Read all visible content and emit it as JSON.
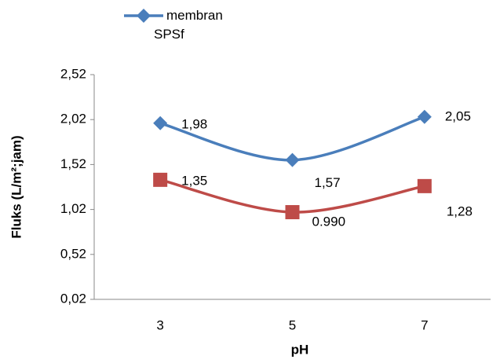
{
  "chart_data": {
    "type": "line",
    "categories": [
      "3",
      "5",
      "7"
    ],
    "series": [
      {
        "name": "membran SPSf",
        "color": "#4a7ebb",
        "marker": "diamond",
        "values": [
          1.98,
          1.57,
          2.05
        ],
        "value_labels": [
          "1,98",
          "1,57",
          "2,05"
        ]
      },
      {
        "color": "#be4b48",
        "marker": "square",
        "values": [
          1.35,
          0.99,
          1.28
        ],
        "value_labels": [
          "1,35",
          "0.990",
          "1,28"
        ]
      }
    ],
    "ylim": [
      0.02,
      2.52
    ],
    "yticks": [
      {
        "value": 0.02,
        "label": "0,02"
      },
      {
        "value": 0.52,
        "label": "0,52"
      },
      {
        "value": 1.02,
        "label": "1,02"
      },
      {
        "value": 1.52,
        "label": "1,52"
      },
      {
        "value": 2.02,
        "label": "2,02"
      },
      {
        "value": 2.52,
        "label": "2,52"
      }
    ],
    "y_label": "Fluks (L/m²;jam)",
    "x_label": "pH",
    "smooth": true
  }
}
